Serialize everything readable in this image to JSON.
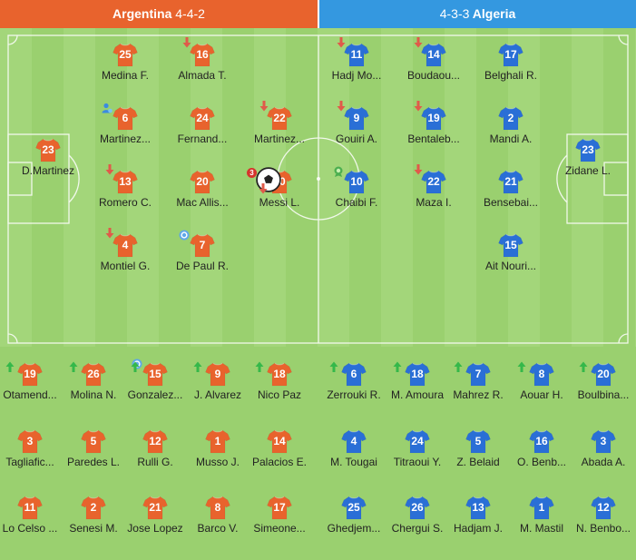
{
  "home": {
    "name": "Argentina",
    "formation": "4-4-2",
    "color": "#e8632d",
    "starters": [
      {
        "number": "23",
        "name": "D.Martinez"
      },
      {
        "number": "25",
        "name": "Medina F."
      },
      {
        "number": "6",
        "name": "Martinez..."
      },
      {
        "number": "13",
        "name": "Romero C."
      },
      {
        "number": "4",
        "name": "Montiel G."
      },
      {
        "number": "16",
        "name": "Almada T."
      },
      {
        "number": "24",
        "name": "Fernand..."
      },
      {
        "number": "20",
        "name": "Mac Allis..."
      },
      {
        "number": "7",
        "name": "De Paul R."
      },
      {
        "number": "22",
        "name": "Martinez..."
      },
      {
        "number": "10",
        "name": "Messi L.",
        "goals": "3"
      }
    ],
    "bench": [
      {
        "number": "19",
        "name": "Otamend..."
      },
      {
        "number": "26",
        "name": "Molina N."
      },
      {
        "number": "15",
        "name": "Gonzalez..."
      },
      {
        "number": "9",
        "name": "J. Alvarez"
      },
      {
        "number": "18",
        "name": "Nico Paz"
      },
      {
        "number": "3",
        "name": "Tagliafic..."
      },
      {
        "number": "5",
        "name": "Paredes L."
      },
      {
        "number": "12",
        "name": "Rulli G."
      },
      {
        "number": "1",
        "name": "Musso J."
      },
      {
        "number": "14",
        "name": "Palacios E."
      },
      {
        "number": "11",
        "name": "Lo Celso ..."
      },
      {
        "number": "2",
        "name": "Senesi M."
      },
      {
        "number": "21",
        "name": "Jose Lopez"
      },
      {
        "number": "8",
        "name": "Barco V."
      },
      {
        "number": "17",
        "name": "Simeone..."
      }
    ]
  },
  "away": {
    "name": "Algeria",
    "formation": "4-3-3",
    "color": "#2a6fd6",
    "starters": [
      {
        "number": "23",
        "name": "Zidane L."
      },
      {
        "number": "17",
        "name": "Belghali R."
      },
      {
        "number": "2",
        "name": "Mandi A."
      },
      {
        "number": "21",
        "name": "Bensebai..."
      },
      {
        "number": "15",
        "name": "Ait Nouri..."
      },
      {
        "number": "14",
        "name": "Boudaou..."
      },
      {
        "number": "19",
        "name": "Bentaleb..."
      },
      {
        "number": "22",
        "name": "Maza I."
      },
      {
        "number": "11",
        "name": "Hadj Mo..."
      },
      {
        "number": "9",
        "name": "Gouiri A."
      },
      {
        "number": "10",
        "name": "Chaibi F."
      }
    ],
    "bench": [
      {
        "number": "6",
        "name": "Zerrouki R."
      },
      {
        "number": "18",
        "name": "M. Amoura"
      },
      {
        "number": "7",
        "name": "Mahrez R."
      },
      {
        "number": "8",
        "name": "Aouar H."
      },
      {
        "number": "20",
        "name": "Boulbina..."
      },
      {
        "number": "4",
        "name": "M. Tougai"
      },
      {
        "number": "24",
        "name": "Titraoui Y."
      },
      {
        "number": "5",
        "name": "Z. Belaid"
      },
      {
        "number": "16",
        "name": "O. Benb..."
      },
      {
        "number": "3",
        "name": "Abada A."
      },
      {
        "number": "25",
        "name": "Ghedjem..."
      },
      {
        "number": "26",
        "name": "Chergui S."
      },
      {
        "number": "13",
        "name": "Hadjam J."
      },
      {
        "number": "1",
        "name": "M. Mastil"
      },
      {
        "number": "12",
        "name": "N. Benbo..."
      }
    ]
  },
  "colors": {
    "substitution_out": "#e05a4a",
    "substitution_in": "#35b84a",
    "pitch_light": "#a3d67a",
    "pitch_dark": "#9ad06f"
  },
  "icons": {
    "sub_out": "red-down-arrow-icon",
    "sub_in": "green-up-arrow-icon",
    "goal": "football-icon",
    "assist": "assist-icon",
    "player_of_match": "man-of-match-icon",
    "penalty_award": "award-badge-icon"
  }
}
